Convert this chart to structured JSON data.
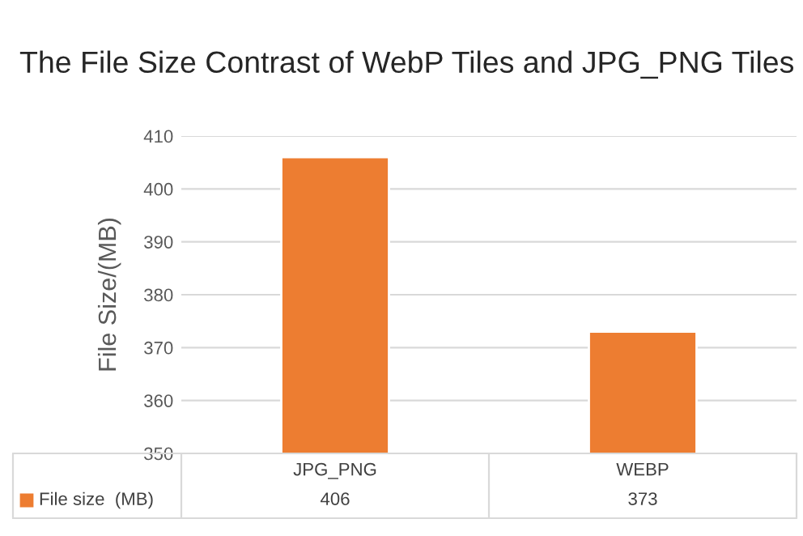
{
  "chart_data": {
    "type": "bar",
    "title": "The File Size Contrast of WebP Tiles and JPG_PNG Tiles",
    "ylabel": "File Size/(MB)",
    "categories": [
      "JPG_PNG",
      "WEBP"
    ],
    "series": [
      {
        "name": "File size  (MB)",
        "color": "#ed7d31",
        "values": [
          406,
          373
        ]
      }
    ],
    "ylim": [
      350,
      410
    ],
    "yticks": [
      350,
      360,
      370,
      380,
      390,
      400,
      410
    ],
    "grid": "y",
    "data_labels": true,
    "legend": "bottom"
  }
}
